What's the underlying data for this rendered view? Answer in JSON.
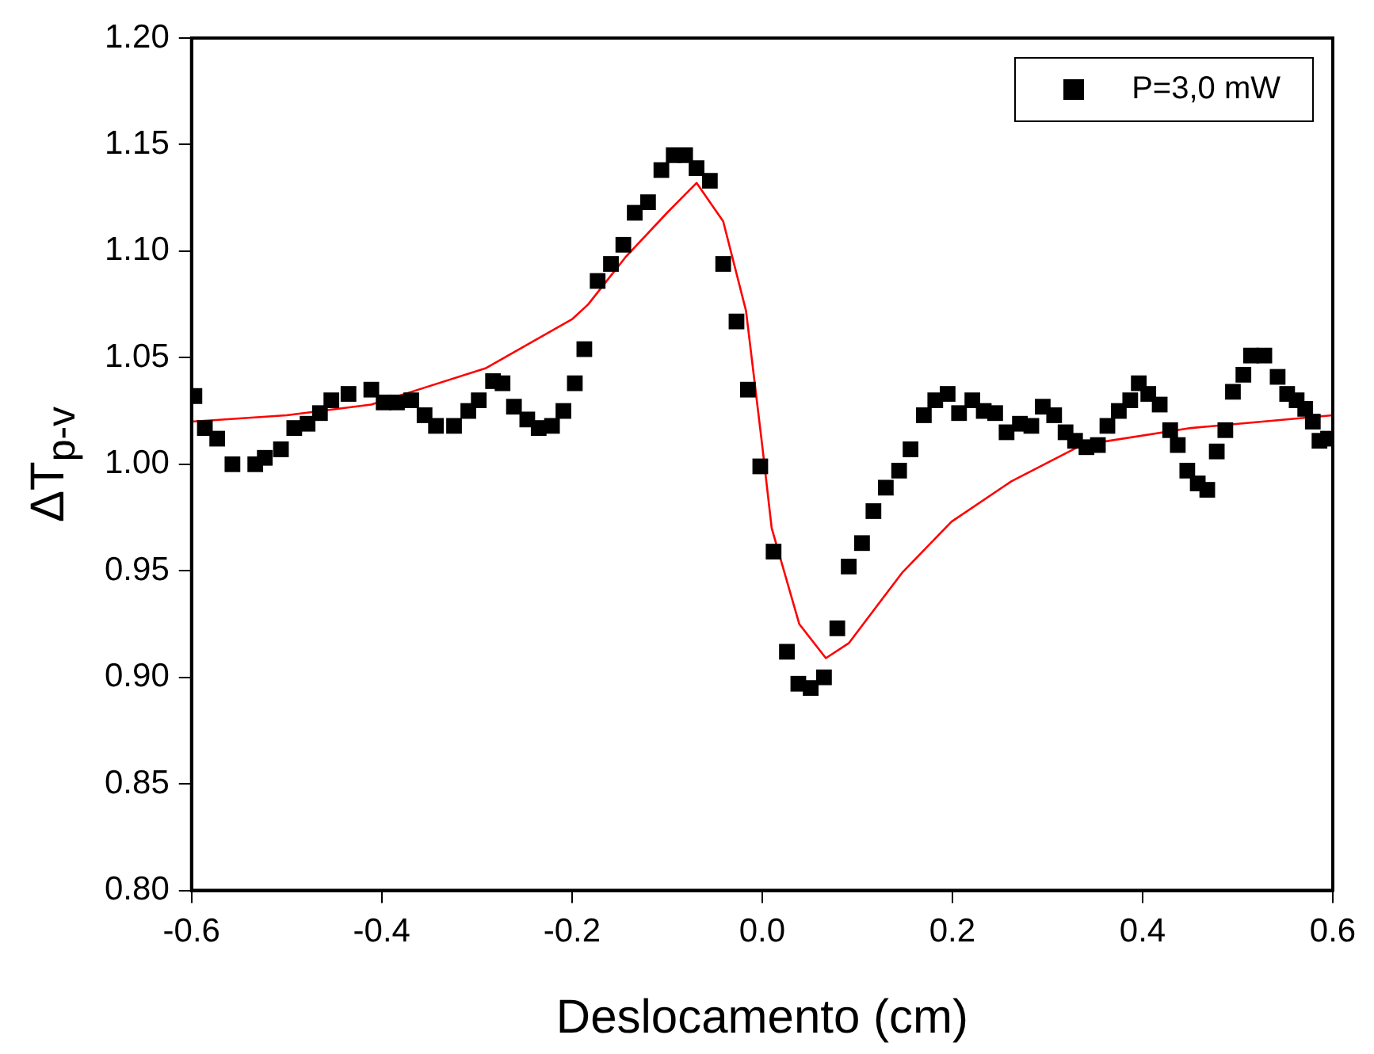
{
  "chart_data": {
    "type": "scatter",
    "xlabel": "Deslocamento (cm)",
    "ylabel": "ΔT$_{p-v}$",
    "xlim": [
      -0.6,
      0.6
    ],
    "xticks": [
      -0.6,
      -0.4,
      -0.2,
      {
        "value": 0,
        "label": "0.0"
      },
      0.2,
      0.4,
      0.6
    ],
    "ylim": [
      0.8,
      1.2
    ],
    "yticks": [
      {
        "value": 0.8,
        "label": "0.80"
      },
      0.85,
      {
        "value": 0.9,
        "label": "0.90"
      },
      0.95,
      {
        "value": 1.0,
        "label": "1.00"
      },
      1.05,
      {
        "value": 1.1,
        "label": "1.10"
      },
      1.15,
      {
        "value": 1.2,
        "label": "1.20"
      }
    ],
    "grid": false,
    "legend": "top right",
    "series": [
      {
        "name": "P=3,0 mW",
        "marker": "square",
        "color": "#000000",
        "x": [
          -0.597,
          -0.586,
          -0.573,
          -0.557,
          -0.533,
          -0.523,
          -0.506,
          -0.492,
          -0.478,
          -0.465,
          -0.453,
          -0.435,
          -0.411,
          -0.398,
          -0.384,
          -0.369,
          -0.355,
          -0.343,
          -0.324,
          -0.309,
          -0.298,
          -0.283,
          -0.273,
          -0.261,
          -0.247,
          -0.235,
          -0.221,
          -0.209,
          -0.197,
          -0.187,
          -0.173,
          -0.159,
          -0.146,
          -0.134,
          -0.12,
          -0.106,
          -0.093,
          -0.081,
          -0.069,
          -0.055,
          -0.041,
          -0.027,
          -0.015,
          -0.002,
          0.012,
          0.026,
          0.038,
          0.051,
          0.065,
          0.079,
          0.091,
          0.105,
          0.117,
          0.13,
          0.144,
          0.156,
          0.17,
          0.182,
          0.195,
          0.207,
          0.221,
          0.233,
          0.245,
          0.257,
          0.271,
          0.283,
          0.295,
          0.307,
          0.319,
          0.329,
          0.341,
          0.353,
          0.363,
          0.375,
          0.387,
          0.396,
          0.406,
          0.418,
          0.429,
          0.437,
          0.447,
          0.458,
          0.468,
          0.478,
          0.487,
          0.495,
          0.506,
          0.514,
          0.528,
          0.542,
          0.552,
          0.562,
          0.571,
          0.579,
          0.586,
          0.595
        ],
        "values": [
          1.032,
          1.017,
          1.012,
          1.0,
          1.0,
          1.003,
          1.007,
          1.017,
          1.019,
          1.024,
          1.03,
          1.033,
          1.035,
          1.029,
          1.029,
          1.03,
          1.023,
          1.018,
          1.018,
          1.025,
          1.03,
          1.039,
          1.038,
          1.027,
          1.021,
          1.017,
          1.018,
          1.025,
          1.038,
          1.054,
          1.086,
          1.094,
          1.103,
          1.118,
          1.123,
          1.138,
          1.145,
          1.145,
          1.139,
          1.133,
          1.094,
          1.067,
          1.035,
          0.999,
          0.959,
          0.912,
          0.897,
          0.895,
          0.9,
          0.923,
          0.952,
          0.963,
          0.978,
          0.989,
          0.997,
          1.007,
          1.023,
          1.03,
          1.033,
          1.024,
          1.03,
          1.025,
          1.024,
          1.015,
          1.019,
          1.018,
          1.027,
          1.023,
          1.015,
          1.011,
          1.008,
          1.009,
          1.018,
          1.025,
          1.03,
          1.038,
          1.033,
          1.028,
          1.016,
          1.009,
          0.997,
          0.991,
          0.988,
          1.006,
          1.016,
          1.034,
          1.042,
          1.051,
          1.051,
          1.041,
          1.033,
          1.03,
          1.026,
          1.02,
          1.011,
          1.012
        ]
      },
      {
        "type": "line",
        "marker": "none",
        "color": "#ff0000",
        "x": [
          -0.6,
          -0.5,
          -0.411,
          -0.291,
          -0.2,
          -0.183,
          -0.144,
          -0.1,
          -0.069,
          -0.041,
          -0.017,
          0.0,
          0.01,
          0.039,
          0.067,
          0.091,
          0.147,
          0.199,
          0.262,
          0.336,
          0.451,
          0.6
        ],
        "values": [
          1.02,
          1.023,
          1.028,
          1.045,
          1.068,
          1.075,
          1.097,
          1.118,
          1.132,
          1.114,
          1.072,
          1.009,
          0.97,
          0.925,
          0.909,
          0.916,
          0.949,
          0.973,
          0.992,
          1.009,
          1.017,
          1.023
        ]
      }
    ]
  }
}
